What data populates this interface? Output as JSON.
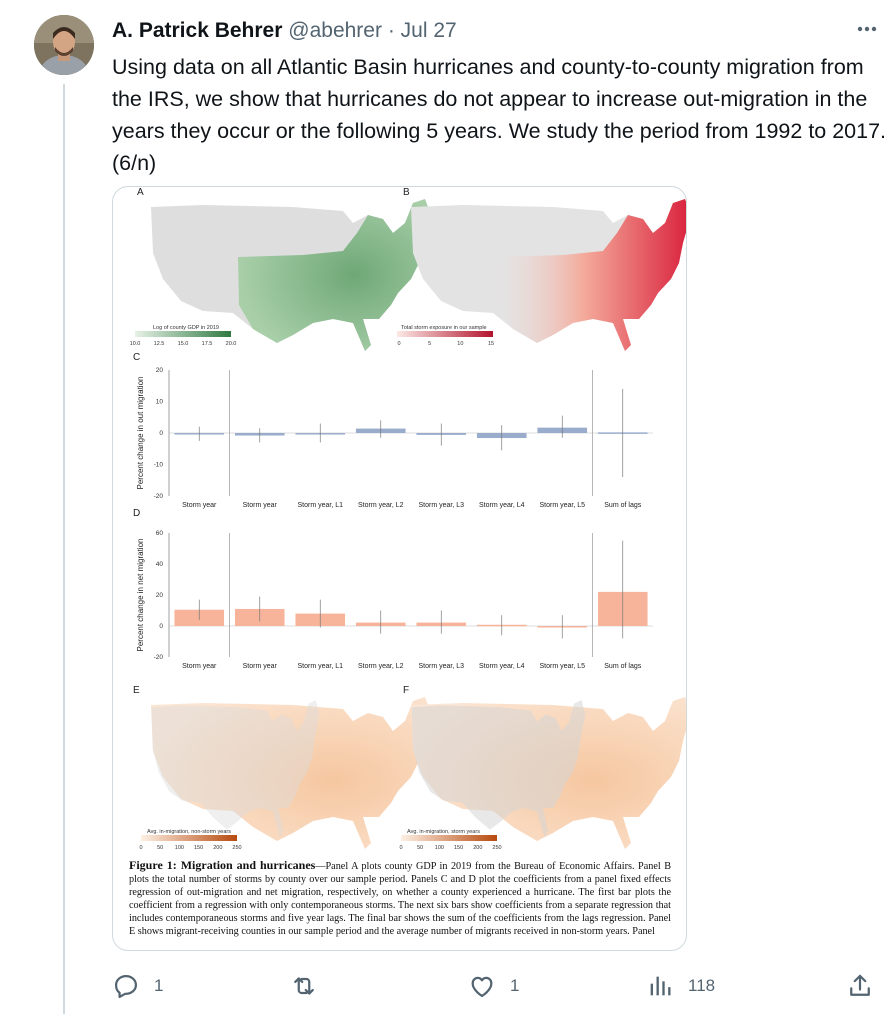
{
  "author": {
    "name": "A. Patrick Behrer",
    "handle": "@abehrer",
    "separator": "·",
    "date": "Jul 27",
    "avatar_icon": "profile-photo"
  },
  "tweet_text": "Using data on all Atlantic Basin hurricanes and county-to-county migration from the IRS, we show that hurricanes do not appear to increase out-migration in the years they occur or the following 5 years. We study the period from 1992 to 2017. (6/n)",
  "more_icon": "more-horizontal-icon",
  "figure": {
    "panel_a": {
      "letter": "A",
      "legend_title": "Log of county GDP in 2019",
      "legend_ticks": [
        "10.0",
        "12.5",
        "15.0",
        "17.5",
        "20.0"
      ],
      "color": "#3d8c4f"
    },
    "panel_b": {
      "letter": "B",
      "legend_title": "Total storm exposure in our sample",
      "legend_ticks": [
        "0",
        "5",
        "10",
        "15"
      ],
      "color": "#c81e3c"
    },
    "panel_e": {
      "letter": "E",
      "legend_title": "Avg. in-migration, non-storm years",
      "legend_ticks": [
        "0",
        "50",
        "100",
        "150",
        "200",
        "250"
      ],
      "color": "#d4691e"
    },
    "panel_f": {
      "letter": "F",
      "legend_title": "Avg. in-migration, storm years",
      "legend_ticks": [
        "0",
        "50",
        "100",
        "150",
        "200",
        "250"
      ],
      "color": "#d4691e"
    },
    "caption_title": "Figure 1:  Migration and hurricanes",
    "caption_body": "—Panel A plots county GDP in 2019 from the Bureau of Economic Affairs. Panel B plots the total number of storms by county over our sample period. Panels C and D plot the coefficients from a panel fixed effects regression of out-migration and net migration, respectively, on whether a county experienced a hurricane. The first bar plots the coefficient from a regression with only contemporaneous storms. The next six bars show coefficients from a separate regression that includes contemporaneous storms and five year lags. The final bar shows the sum of the coefficients from the lags regression. Panel E shows migrant-receiving counties in our sample period and the average number of migrants received in non-storm years. Panel"
  },
  "chart_data": [
    {
      "type": "bar",
      "panel": "C",
      "ylabel": "Percent change in out migration",
      "categories": [
        "Storm year",
        "Storm year",
        "Storm year, L1",
        "Storm year, L2",
        "Storm year, L3",
        "Storm year, L4",
        "Storm year, L5",
        "Sum of lags"
      ],
      "values": [
        -0.3,
        -0.8,
        -0.3,
        1.4,
        -0.6,
        -1.6,
        1.7,
        0.2
      ],
      "ci_low": [
        -2.5,
        -3.0,
        -3.0,
        -1.5,
        -4.0,
        -5.5,
        -1.5,
        -14.0
      ],
      "ci_high": [
        2.0,
        1.5,
        3.0,
        4.0,
        3.0,
        2.5,
        5.5,
        14.0
      ],
      "ylim": [
        -20,
        20
      ],
      "yticks": [
        "20",
        "10",
        "0",
        "-10",
        "-20"
      ],
      "color": "#9aaccc"
    },
    {
      "type": "bar",
      "panel": "D",
      "ylabel": "Percent change in net migration",
      "categories": [
        "Storm year",
        "Storm year",
        "Storm year, L1",
        "Storm year, L2",
        "Storm year, L3",
        "Storm year, L4",
        "Storm year, L5",
        "Sum of lags"
      ],
      "values": [
        10.5,
        11.0,
        8.0,
        2.2,
        2.2,
        0.8,
        -0.5,
        22.0
      ],
      "ci_low": [
        4.0,
        3.0,
        -1.0,
        -5.0,
        -5.0,
        -6.0,
        -8.0,
        -8.0
      ],
      "ci_high": [
        17.0,
        19.0,
        17.0,
        10.0,
        10.0,
        7.0,
        7.0,
        55.0
      ],
      "ylim": [
        -20,
        60
      ],
      "yticks": [
        "60",
        "40",
        "20",
        "0",
        "-20"
      ],
      "color": "#f7b49a"
    }
  ],
  "actions": {
    "reply_icon": "reply-icon",
    "reply_count": "1",
    "retweet_icon": "retweet-icon",
    "retweet_count": "",
    "like_icon": "heart-icon",
    "like_count": "1",
    "views_icon": "analytics-icon",
    "views_count": "118",
    "share_icon": "share-icon"
  }
}
